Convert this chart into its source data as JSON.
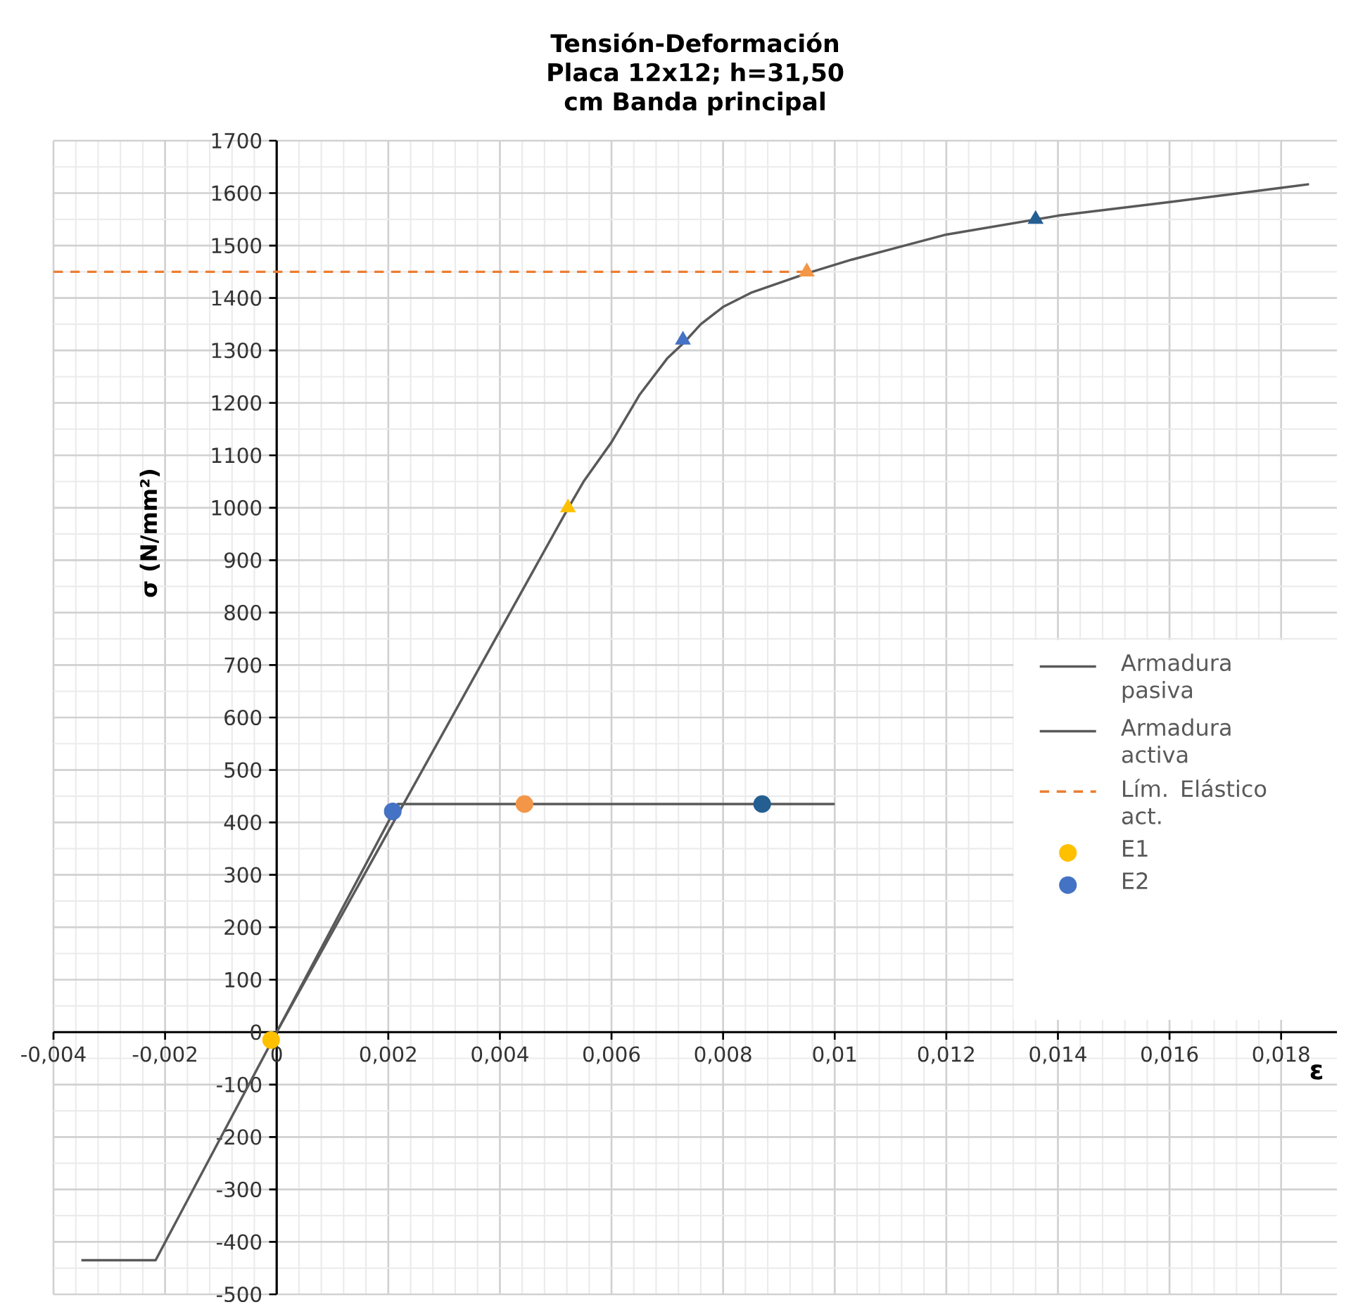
{
  "chart_data": {
    "type": "scatter",
    "title": "Tensión-Deformación",
    "subtitle": "Placa 12x12; h=31,50 cm Banda principal",
    "xlabel": "ε",
    "ylabel": "σ (N/mm²)",
    "xlim": [
      -0.004,
      0.019
    ],
    "ylim": [
      -500,
      1700
    ],
    "xticks": [
      {
        "value": -0.004,
        "label": "-0,004"
      },
      {
        "value": -0.002,
        "label": "-0,002"
      },
      0,
      {
        "value": 0.002,
        "label": "0,002"
      },
      {
        "value": 0.004,
        "label": "0,004"
      },
      {
        "value": 0.006,
        "label": "0,006"
      },
      {
        "value": 0.008,
        "label": "0,008"
      },
      {
        "value": 0.01,
        "label": "0,01"
      },
      {
        "value": 0.012,
        "label": "0,012"
      },
      {
        "value": 0.014,
        "label": "0,014"
      },
      {
        "value": 0.016,
        "label": "0,016"
      },
      {
        "value": 0.018,
        "label": "0,018"
      }
    ],
    "yticks": [
      -500,
      -400,
      -300,
      -200,
      -100,
      0,
      100,
      200,
      300,
      400,
      500,
      600,
      700,
      800,
      900,
      1000,
      1100,
      1200,
      1300,
      1400,
      1500,
      1600,
      1700
    ],
    "grid": true,
    "legend": "right",
    "series": [
      {
        "name": "Armadura pasiva",
        "type": "line",
        "color": "#595959",
        "marker": "none",
        "x": [
          -0.0035,
          -0.00217,
          0.00217,
          0.01
        ],
        "values": [
          -435,
          -435,
          435,
          435
        ]
      },
      {
        "name": "Armadura activa",
        "type": "line",
        "color": "#595959",
        "marker": "none",
        "x": [
          0,
          0.0052,
          0.0055,
          0.006,
          0.0065,
          0.007,
          0.0073,
          0.0076,
          0.008,
          0.0085,
          0.0095,
          0.0103,
          0.012,
          0.014,
          0.016,
          0.018,
          0.0185
        ],
        "values": [
          0,
          995,
          1050,
          1125,
          1215,
          1285,
          1315,
          1350,
          1383,
          1410,
          1447,
          1473,
          1521,
          1557,
          1583,
          1610,
          1617
        ]
      },
      {
        "name": "Lím. Elástico act.",
        "type": "line",
        "color": "#ed7d31",
        "marker": "none",
        "line_style": "dashed",
        "x": [
          -0.004,
          0.0095
        ],
        "values": [
          1450,
          1450
        ]
      },
      {
        "name": "E1",
        "color": "#ffc000",
        "marker": "circle",
        "x": [
          -0.0001
        ],
        "values": [
          -15
        ]
      },
      {
        "name": "E2",
        "color": "#4472c4",
        "marker": "circle",
        "x": [
          0.00208
        ],
        "values": [
          421
        ]
      },
      {
        "color": "#f39647",
        "marker": "circle",
        "x": [
          0.00444
        ],
        "values": [
          435
        ]
      },
      {
        "color": "#255e91",
        "marker": "circle",
        "x": [
          0.0087
        ],
        "values": [
          435
        ]
      },
      {
        "color": "#ffc000",
        "marker": "triangle",
        "x": [
          0.00522
        ],
        "values": [
          1000
        ]
      },
      {
        "color": "#4472c4",
        "marker": "triangle",
        "x": [
          0.00728
        ],
        "values": [
          1320
        ]
      },
      {
        "color": "#f39647",
        "marker": "triangle",
        "x": [
          0.0095
        ],
        "values": [
          1450
        ]
      },
      {
        "color": "#255e91",
        "marker": "triangle",
        "x": [
          0.0136
        ],
        "values": [
          1550
        ]
      }
    ]
  }
}
